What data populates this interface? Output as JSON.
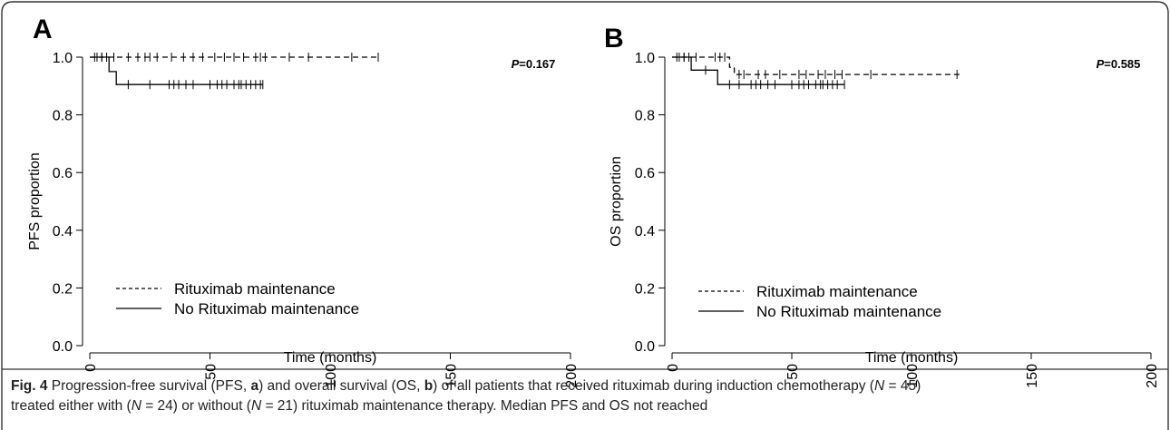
{
  "chart_data": [
    {
      "type": "line",
      "panel_label": "A",
      "ylabel": "PFS proportion",
      "xlabel": "Time (months)",
      "p_label": "P",
      "p_value": "=0.167",
      "xlim": [
        0,
        200
      ],
      "ylim": [
        0.0,
        1.0
      ],
      "xticks": [
        "0",
        "50",
        "100",
        "150",
        "200"
      ],
      "yticks": [
        "0.0",
        "0.2",
        "0.4",
        "0.6",
        "0.8",
        "1.0"
      ],
      "legend_position": "bottom-left",
      "series": [
        {
          "name": "Rituximab maintenance",
          "style": "dashed",
          "steps": [
            [
              0,
              1.0
            ],
            [
              120,
              1.0
            ]
          ],
          "censor_times": [
            3,
            5,
            7,
            10,
            16,
            20,
            23,
            25,
            28,
            34,
            39,
            43,
            47,
            52,
            56,
            60,
            64,
            69,
            71,
            73,
            83,
            91,
            109,
            120
          ]
        },
        {
          "name": "No Rituximab maintenance",
          "style": "solid",
          "steps": [
            [
              0,
              1.0
            ],
            [
              8,
              1.0
            ],
            [
              8,
              0.95
            ],
            [
              11,
              0.95
            ],
            [
              11,
              0.905
            ],
            [
              72,
              0.905
            ]
          ],
          "censor_times": [
            2,
            5,
            16,
            25,
            33,
            35,
            37,
            40,
            43,
            50,
            53,
            55,
            57,
            60,
            62,
            63,
            65,
            67,
            69,
            71,
            72
          ]
        }
      ]
    },
    {
      "type": "line",
      "panel_label": "B",
      "ylabel": "OS proportion",
      "xlabel": "Time (months)",
      "p_label": "P",
      "p_value": "=0.585",
      "xlim": [
        0,
        200
      ],
      "ylim": [
        0.0,
        1.0
      ],
      "xticks": [
        "0",
        "50",
        "100",
        "150",
        "200"
      ],
      "yticks": [
        "0.0",
        "0.2",
        "0.4",
        "0.6",
        "0.8",
        "1.0"
      ],
      "legend_position": "bottom-left",
      "series": [
        {
          "name": "Rituximab maintenance",
          "style": "dashed",
          "steps": [
            [
              0,
              1.0
            ],
            [
              24,
              1.0
            ],
            [
              24,
              0.965
            ],
            [
              26,
              0.965
            ],
            [
              26,
              0.94
            ],
            [
              120,
              0.94
            ]
          ],
          "censor_times": [
            3,
            5,
            7,
            10,
            18,
            20,
            22,
            28,
            30,
            36,
            39,
            45,
            53,
            56,
            61,
            64,
            68,
            71,
            83,
            119
          ]
        },
        {
          "name": "No Rituximab maintenance",
          "style": "solid",
          "steps": [
            [
              0,
              1.0
            ],
            [
              8,
              1.0
            ],
            [
              8,
              0.955
            ],
            [
              19,
              0.955
            ],
            [
              19,
              0.905
            ],
            [
              72,
              0.905
            ]
          ],
          "censor_times": [
            2,
            5,
            14,
            24,
            28,
            33,
            35,
            37,
            40,
            43,
            50,
            53,
            55,
            57,
            60,
            62,
            63,
            65,
            67,
            69,
            72
          ]
        }
      ]
    }
  ],
  "caption": {
    "fig_label": "Fig. 4",
    "t1": " Progression-free survival (PFS, ",
    "b1": "a",
    "t2": ") and overall survival (OS, ",
    "b2": "b",
    "t3": ") of all patients that received rituximab during induction chemotherapy (",
    "n1": "N",
    "t4": " = 45)",
    "t5": "treated either with (",
    "n2": "N",
    "t6": " = 24) or without (",
    "n3": "N",
    "t7": " = 21) rituximab maintenance therapy. Median PFS and OS not reached"
  }
}
